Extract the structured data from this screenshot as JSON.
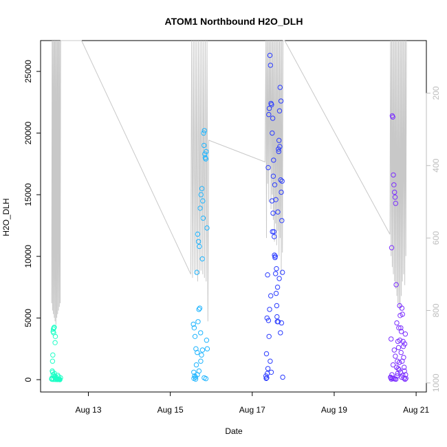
{
  "chart_data": {
    "type": "scatter",
    "title": "ATOM1 Northbound H2O_DLH",
    "xlabel": "Date",
    "ylabel": "H2O_DLH",
    "x_axis": {
      "kind": "date",
      "range": [
        "2016-08-11T20:00",
        "2016-08-21T06:00"
      ],
      "ticks": [
        {
          "value": "2016-08-13",
          "label": "Aug 13"
        },
        {
          "value": "2016-08-15",
          "label": "Aug 15"
        },
        {
          "value": "2016-08-17",
          "label": "Aug 17"
        },
        {
          "value": "2016-08-19",
          "label": "Aug 19"
        },
        {
          "value": "2016-08-21",
          "label": "Aug 21"
        }
      ]
    },
    "y_axis": {
      "range": [
        -1000,
        27500
      ],
      "ticks": [
        0,
        5000,
        10000,
        15000,
        20000,
        25000
      ],
      "tick_labels": [
        "0",
        "5000",
        "10000",
        "15000",
        "20000",
        "25000"
      ]
    },
    "y2_axis": {
      "description": "pressure, reversed",
      "range": [
        1025,
        55
      ],
      "ticks": [
        200,
        400,
        600,
        800,
        1000
      ],
      "tick_labels": [
        "200",
        "400",
        "600",
        "800",
        "1000"
      ],
      "color": "#bdbdbd"
    },
    "grid": false,
    "legend": "none",
    "colors": {
      "pressure_trace": "#c8c8c8",
      "flight1": "#1cffc6",
      "flight2": "#1cb4ff",
      "flight3": "#2a3bff",
      "flight4": "#7a2cff",
      "axis": "#000000",
      "right_axis": "#bdbdbd"
    },
    "series": [
      {
        "color": "#1cffc6",
        "x": [
          "2016-08-12T02:30",
          "2016-08-12T02:40",
          "2016-08-12T02:50",
          "2016-08-12T03:00",
          "2016-08-12T03:10",
          "2016-08-12T03:20",
          "2016-08-12T03:30",
          "2016-08-12T03:40",
          "2016-08-12T03:50",
          "2016-08-12T04:00",
          "2016-08-12T04:10",
          "2016-08-12T04:20",
          "2016-08-12T04:30",
          "2016-08-12T04:40",
          "2016-08-12T04:50",
          "2016-08-12T05:00",
          "2016-08-12T05:20",
          "2016-08-12T05:40",
          "2016-08-12T06:00",
          "2016-08-12T06:20",
          "2016-08-12T06:40",
          "2016-08-12T07:00",
          "2016-08-12T07:20",
          "2016-08-12T07:40",
          "2016-08-12T03:05",
          "2016-08-12T03:25",
          "2016-08-12T04:05",
          "2016-08-12T04:25",
          "2016-08-12T05:05",
          "2016-08-12T05:25",
          "2016-08-12T06:05",
          "2016-08-12T06:35",
          "2016-08-12T02:45",
          "2016-08-12T03:35",
          "2016-08-12T04:45",
          "2016-08-12T05:45"
        ],
        "y": [
          50,
          120,
          700,
          1500,
          2000,
          3900,
          4100,
          3800,
          4200,
          4250,
          500,
          300,
          3000,
          3500,
          200,
          100,
          80,
          60,
          40,
          30,
          20,
          10,
          5,
          150,
          600,
          400,
          250,
          180,
          90,
          70,
          350,
          220,
          30,
          20,
          15,
          10
        ]
      },
      {
        "color": "#1cb4ff",
        "x": [
          "2016-08-15T13:30",
          "2016-08-15T14:00",
          "2016-08-15T14:30",
          "2016-08-15T15:00",
          "2016-08-15T15:30",
          "2016-08-15T16:00",
          "2016-08-15T16:30",
          "2016-08-15T17:00",
          "2016-08-15T17:30",
          "2016-08-15T18:00",
          "2016-08-15T18:30",
          "2016-08-15T19:00",
          "2016-08-15T19:30",
          "2016-08-15T20:00",
          "2016-08-15T20:30",
          "2016-08-15T21:00",
          "2016-08-15T21:30",
          "2016-08-15T13:45",
          "2016-08-15T14:15",
          "2016-08-15T14:45",
          "2016-08-15T15:15",
          "2016-08-15T15:45",
          "2016-08-15T16:15",
          "2016-08-15T16:45",
          "2016-08-15T17:15",
          "2016-08-15T17:45",
          "2016-08-15T18:15",
          "2016-08-15T18:45",
          "2016-08-15T19:15",
          "2016-08-15T19:45",
          "2016-08-15T20:15",
          "2016-08-15T20:45",
          "2016-08-15T21:15",
          "2016-08-15T13:50",
          "2016-08-15T14:50",
          "2016-08-15T15:50",
          "2016-08-15T16:50",
          "2016-08-15T17:50",
          "2016-08-15T18:50",
          "2016-08-15T19:50",
          "2016-08-15T20:50",
          "2016-08-15T21:40"
        ],
        "y": [
          4500,
          4200,
          3500,
          2500,
          8700,
          11800,
          11200,
          10800,
          13900,
          15000,
          15500,
          14500,
          20000,
          20200,
          18000,
          18500,
          12300,
          600,
          300,
          200,
          1200,
          2200,
          4700,
          5700,
          5800,
          3800,
          2000,
          9800,
          13100,
          19000,
          18300,
          17900,
          3200,
          100,
          50,
          400,
          700,
          1500,
          2400,
          150,
          80,
          2500
        ]
      },
      {
        "color": "#2a3bff",
        "x": [
          "2016-08-17T08:00",
          "2016-08-17T08:20",
          "2016-08-17T08:40",
          "2016-08-17T09:00",
          "2016-08-17T09:20",
          "2016-08-17T09:40",
          "2016-08-17T10:00",
          "2016-08-17T10:20",
          "2016-08-17T10:40",
          "2016-08-17T11:00",
          "2016-08-17T11:20",
          "2016-08-17T11:40",
          "2016-08-17T12:00",
          "2016-08-17T12:20",
          "2016-08-17T12:40",
          "2016-08-17T13:00",
          "2016-08-17T13:20",
          "2016-08-17T13:40",
          "2016-08-17T14:00",
          "2016-08-17T14:20",
          "2016-08-17T14:40",
          "2016-08-17T15:00",
          "2016-08-17T15:20",
          "2016-08-17T15:40",
          "2016-08-17T16:00",
          "2016-08-17T16:20",
          "2016-08-17T16:40",
          "2016-08-17T17:00",
          "2016-08-17T17:20",
          "2016-08-17T17:40",
          "2016-08-17T08:10",
          "2016-08-17T08:50",
          "2016-08-17T09:30",
          "2016-08-17T10:10",
          "2016-08-17T10:50",
          "2016-08-17T11:30",
          "2016-08-17T12:10",
          "2016-08-17T12:50",
          "2016-08-17T13:30",
          "2016-08-17T14:10",
          "2016-08-17T14:50",
          "2016-08-17T15:30",
          "2016-08-17T16:10",
          "2016-08-17T16:50",
          "2016-08-17T17:30",
          "2016-08-17T08:30",
          "2016-08-17T09:10",
          "2016-08-17T09:50",
          "2016-08-17T10:30",
          "2016-08-17T11:10",
          "2016-08-17T11:50",
          "2016-08-17T12:30",
          "2016-08-17T13:10",
          "2016-08-17T13:50",
          "2016-08-17T14:30",
          "2016-08-17T15:10",
          "2016-08-17T15:50",
          "2016-08-17T16:30",
          "2016-08-17T17:10",
          "2016-08-17T17:50"
        ],
        "y": [
          300,
          2100,
          5000,
          8500,
          17200,
          21500,
          22000,
          26300,
          25500,
          22400,
          22300,
          20000,
          21200,
          16500,
          12000,
          10100,
          9900,
          8600,
          7000,
          6000,
          4700,
          13600,
          18700,
          19400,
          21800,
          23700,
          16200,
          15200,
          12900,
          8700,
          100,
          500,
          4800,
          5700,
          6800,
          14500,
          13500,
          11600,
          10000,
          9000,
          7500,
          18500,
          18900,
          22600,
          16100,
          150,
          900,
          3500,
          1500,
          600,
          12000,
          17800,
          15800,
          14600,
          5100,
          4700,
          8200,
          3800,
          4600,
          200
        ]
      },
      {
        "color": "#7a2cff",
        "x": [
          "2016-08-20T09:00",
          "2016-08-20T09:20",
          "2016-08-20T09:40",
          "2016-08-20T10:00",
          "2016-08-20T10:20",
          "2016-08-20T10:40",
          "2016-08-20T11:00",
          "2016-08-20T11:20",
          "2016-08-20T11:40",
          "2016-08-20T12:00",
          "2016-08-20T12:20",
          "2016-08-20T12:40",
          "2016-08-20T13:00",
          "2016-08-20T13:20",
          "2016-08-20T13:40",
          "2016-08-20T14:00",
          "2016-08-20T14:20",
          "2016-08-20T14:40",
          "2016-08-20T15:00",
          "2016-08-20T15:20",
          "2016-08-20T15:40",
          "2016-08-20T16:00",
          "2016-08-20T16:20",
          "2016-08-20T16:40",
          "2016-08-20T17:00",
          "2016-08-20T17:20",
          "2016-08-20T17:40",
          "2016-08-20T18:00",
          "2016-08-20T09:10",
          "2016-08-20T09:50",
          "2016-08-20T10:30",
          "2016-08-20T11:10",
          "2016-08-20T11:50",
          "2016-08-20T12:30",
          "2016-08-20T13:10",
          "2016-08-20T13:50",
          "2016-08-20T14:30",
          "2016-08-20T15:10",
          "2016-08-20T15:50",
          "2016-08-20T16:30",
          "2016-08-20T17:10",
          "2016-08-20T17:50",
          "2016-08-20T09:30",
          "2016-08-20T10:10",
          "2016-08-20T10:50",
          "2016-08-20T11:30",
          "2016-08-20T12:10",
          "2016-08-20T12:50",
          "2016-08-20T13:30",
          "2016-08-20T14:10",
          "2016-08-20T14:50",
          "2016-08-20T15:30",
          "2016-08-20T16:10",
          "2016-08-20T16:50",
          "2016-08-20T17:30"
        ],
        "y": [
          200,
          3300,
          10700,
          21400,
          21300,
          16600,
          15800,
          15200,
          14800,
          14300,
          7700,
          4600,
          1500,
          3100,
          2600,
          800,
          6000,
          5200,
          4200,
          3900,
          5800,
          5300,
          3100,
          1800,
          1000,
          2900,
          3700,
          100,
          150,
          400,
          1200,
          2400,
          1900,
          1000,
          500,
          4200,
          3200,
          2200,
          1500,
          2700,
          700,
          400,
          50,
          100,
          80,
          60,
          40,
          300,
          900,
          1400,
          600,
          200,
          350,
          120,
          30
        ]
      }
    ],
    "pressure_trace": {
      "color": "#c8c8c8",
      "x": [
        "2016-08-12T02:30",
        "2016-08-12T02:45",
        "2016-08-12T03:00",
        "2016-08-12T03:15",
        "2016-08-12T03:30",
        "2016-08-12T03:45",
        "2016-08-12T04:00",
        "2016-08-12T04:15",
        "2016-08-12T04:30",
        "2016-08-12T04:45",
        "2016-08-12T05:00",
        "2016-08-12T05:15",
        "2016-08-12T05:30",
        "2016-08-12T05:45",
        "2016-08-12T06:00",
        "2016-08-12T06:15",
        "2016-08-12T06:30",
        "2016-08-12T06:45",
        "2016-08-12T07:00",
        "2016-08-12T07:15",
        "2016-08-12T07:30",
        "2016-08-12T07:45",
        "2016-08-12T20:00",
        "2016-08-15T12:00",
        "2016-08-15T12:30",
        "2016-08-15T13:00",
        "2016-08-15T13:30",
        "2016-08-15T14:00",
        "2016-08-15T14:30",
        "2016-08-15T15:00",
        "2016-08-15T15:30",
        "2016-08-15T16:00",
        "2016-08-15T16:30",
        "2016-08-15T17:00",
        "2016-08-15T17:30",
        "2016-08-15T18:00",
        "2016-08-15T18:30",
        "2016-08-15T19:00",
        "2016-08-15T19:30",
        "2016-08-15T20:00",
        "2016-08-15T20:30",
        "2016-08-15T21:00",
        "2016-08-15T21:30",
        "2016-08-15T22:00",
        "2016-08-15T22:30",
        "2016-08-17T07:30",
        "2016-08-17T08:00",
        "2016-08-17T08:20",
        "2016-08-17T08:40",
        "2016-08-17T09:00",
        "2016-08-17T09:20",
        "2016-08-17T09:40",
        "2016-08-17T10:00",
        "2016-08-17T10:20",
        "2016-08-17T10:40",
        "2016-08-17T11:00",
        "2016-08-17T11:20",
        "2016-08-17T11:40",
        "2016-08-17T12:00",
        "2016-08-17T12:20",
        "2016-08-17T12:40",
        "2016-08-17T13:00",
        "2016-08-17T13:20",
        "2016-08-17T13:40",
        "2016-08-17T14:00",
        "2016-08-17T14:20",
        "2016-08-17T14:40",
        "2016-08-17T15:00",
        "2016-08-17T15:20",
        "2016-08-17T15:40",
        "2016-08-17T16:00",
        "2016-08-17T16:20",
        "2016-08-17T16:40",
        "2016-08-17T17:00",
        "2016-08-17T17:20",
        "2016-08-17T17:40",
        "2016-08-17T18:00",
        "2016-08-17T18:20",
        "2016-08-17T19:00",
        "2016-08-20T08:40",
        "2016-08-20T09:00",
        "2016-08-20T09:20",
        "2016-08-20T09:40",
        "2016-08-20T10:00",
        "2016-08-20T10:20",
        "2016-08-20T10:40",
        "2016-08-20T11:00",
        "2016-08-20T11:20",
        "2016-08-20T11:40",
        "2016-08-20T12:00",
        "2016-08-20T12:20",
        "2016-08-20T12:40",
        "2016-08-20T13:00",
        "2016-08-20T13:20",
        "2016-08-20T13:40",
        "2016-08-20T14:00",
        "2016-08-20T14:20",
        "2016-08-20T14:40",
        "2016-08-20T15:00",
        "2016-08-20T15:20",
        "2016-08-20T15:40",
        "2016-08-20T16:00",
        "2016-08-20T16:20",
        "2016-08-20T16:40",
        "2016-08-20T17:00",
        "2016-08-20T17:20",
        "2016-08-20T17:40",
        "2016-08-20T18:00",
        "2016-08-20T18:20"
      ],
      "y": [
        780,
        55,
        800,
        55,
        810,
        55,
        820,
        55,
        830,
        55,
        840,
        55,
        820,
        55,
        810,
        55,
        800,
        55,
        790,
        55,
        780,
        55,
        55,
        700,
        55,
        710,
        55,
        690,
        55,
        700,
        55,
        720,
        55,
        700,
        55,
        690,
        55,
        700,
        55,
        710,
        55,
        720,
        55,
        830,
        330,
        390,
        55,
        600,
        55,
        450,
        55,
        500,
        55,
        400,
        55,
        520,
        55,
        480,
        55,
        550,
        55,
        610,
        55,
        560,
        55,
        620,
        55,
        580,
        55,
        650,
        55,
        600,
        55,
        700,
        55,
        640,
        55,
        55,
        55,
        590,
        55,
        650,
        55,
        680,
        55,
        700,
        55,
        720,
        55,
        740,
        55,
        760,
        55,
        780,
        55,
        790,
        55,
        800,
        55,
        760,
        55,
        720,
        55,
        700,
        55,
        730,
        55,
        650,
        55
      ]
    }
  }
}
